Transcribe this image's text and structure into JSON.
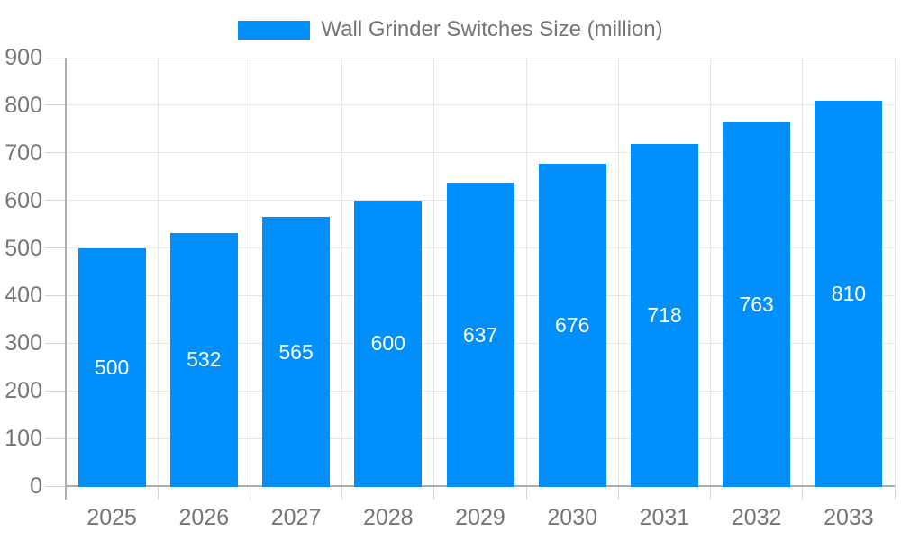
{
  "chart_data": {
    "type": "bar",
    "title": "",
    "legend": {
      "label": "Wall Grinder Switches Size (million)",
      "position": "top-center",
      "marker": "rectangle"
    },
    "categories": [
      "2025",
      "2026",
      "2027",
      "2028",
      "2029",
      "2030",
      "2031",
      "2032",
      "2033"
    ],
    "series": [
      {
        "name": "Wall Grinder Switches Size (million)",
        "values": [
          500,
          532,
          565,
          600,
          637,
          676,
          718,
          763,
          810
        ]
      }
    ],
    "bar_value_labels": [
      "500",
      "532",
      "565",
      "600",
      "637",
      "676",
      "718",
      "763",
      "810"
    ],
    "xlabel": "",
    "ylabel": "",
    "ylim": [
      0,
      900
    ],
    "ytick_step": 100,
    "ytick_labels": [
      "0",
      "100",
      "200",
      "300",
      "400",
      "500",
      "600",
      "700",
      "800",
      "900"
    ],
    "grid": "horizontal and vertical",
    "value_label_placement": "inside-center",
    "colors": {
      "bar": "#008FFB",
      "grid_line": "#e6e6e6",
      "axis_line": "#adadad",
      "tick_line": "#d6d6d6",
      "axis_text": "#757575",
      "legend_text": "#757575",
      "bar_label_text": "#ffffff",
      "background": "#ffffff"
    }
  }
}
